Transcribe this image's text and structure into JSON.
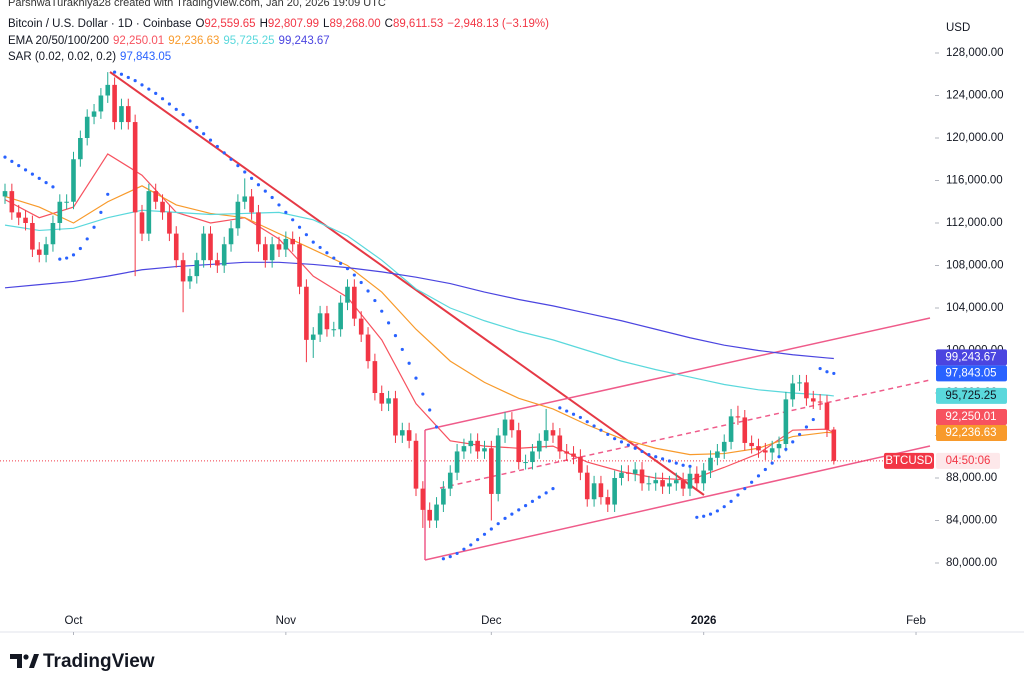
{
  "header": {
    "credit": "ParshwaTurakhiya28 created with TradingView.com, Jan 20, 2026 19:09 UTC"
  },
  "brand": "TradingView",
  "chart_data": {
    "type": "candlestick",
    "symbol": "Bitcoin / U.S. Dollar · 1D · Coinbase",
    "ohlc_legend": [
      {
        "letter": "O",
        "label": "92,559.65"
      },
      {
        "letter": "H",
        "label": "92,807.99"
      },
      {
        "letter": "L",
        "label": "89,268.00"
      },
      {
        "letter": "C",
        "label": "89,611.53"
      }
    ],
    "change": "−2,948.13 (−3.19%)",
    "currency": "USD",
    "ticker": "BTCUSD",
    "countdown": "04:50:06",
    "up_color": "#22ab94",
    "down_color": "#f23645",
    "open": [
      114500,
      115000,
      113000,
      112500,
      112000,
      109500,
      109000,
      110000,
      112000,
      114000,
      114000,
      118000,
      120000,
      122000,
      122500,
      124000,
      125000,
      121500,
      123000,
      121500,
      113000,
      111000,
      115000,
      114000,
      113000,
      111000,
      108500,
      106500,
      107000,
      108500,
      111000,
      108500,
      108000,
      110000,
      111500,
      114000,
      114500,
      113000,
      110000,
      108500,
      110000,
      109500,
      110500,
      110000,
      106000,
      101000,
      101500,
      103500,
      102000,
      102000,
      104500,
      106000,
      103000,
      101500,
      99000,
      96000,
      95000,
      95500,
      92000,
      92500,
      91500,
      87000,
      85000,
      84000,
      85500,
      87000,
      88500,
      90500,
      91000,
      91500,
      90500,
      90800,
      86500,
      92000,
      93500,
      92500,
      89500,
      89500,
      90500,
      91500,
      92500,
      92000,
      90500,
      90300,
      90000,
      88500,
      86000,
      87500,
      86200,
      85500,
      88000,
      88500,
      88400,
      88800,
      87500,
      87500,
      87800,
      87200,
      87500,
      87800,
      87000,
      88400,
      87500,
      88700,
      89900,
      90500,
      91400,
      93800,
      93700,
      91300,
      91000,
      90600,
      90400,
      90800,
      91200,
      95400,
      96900,
      97000,
      95500,
      95200,
      95100,
      92559.65
    ],
    "high": [
      115700,
      115700,
      113700,
      113200,
      112700,
      110200,
      110700,
      112700,
      114700,
      114700,
      118700,
      120700,
      122700,
      123200,
      124700,
      126200,
      125700,
      123700,
      123700,
      122200,
      113700,
      115700,
      115700,
      114700,
      113700,
      111700,
      109200,
      107700,
      109200,
      111700,
      111700,
      109200,
      110700,
      112200,
      114700,
      116200,
      115200,
      113700,
      110700,
      110700,
      110700,
      111200,
      111200,
      110700,
      106700,
      102200,
      104200,
      104200,
      102700,
      105200,
      106700,
      106700,
      103700,
      102200,
      99700,
      96700,
      96200,
      96200,
      93200,
      93200,
      92200,
      87700,
      85700,
      86200,
      87700,
      89200,
      91200,
      91700,
      92200,
      92200,
      91500,
      91500,
      92700,
      94200,
      94200,
      93200,
      90200,
      91200,
      92200,
      94500,
      93200,
      92700,
      91200,
      91000,
      90700,
      89200,
      88200,
      88200,
      86900,
      88700,
      89200,
      89200,
      89500,
      89500,
      88200,
      88500,
      88500,
      88200,
      88500,
      88500,
      89100,
      89100,
      89400,
      90600,
      91200,
      92100,
      94500,
      94800,
      94400,
      92000,
      91700,
      91300,
      91500,
      91900,
      96100,
      97700,
      97700,
      97700,
      96200,
      95900,
      95800,
      92807.99
    ],
    "low": [
      113800,
      112300,
      111800,
      111300,
      108800,
      108300,
      108300,
      109300,
      111300,
      113300,
      113300,
      117300,
      119300,
      121300,
      121800,
      123300,
      120800,
      120800,
      120800,
      107000,
      110300,
      110300,
      113300,
      112300,
      110300,
      107800,
      103600,
      105800,
      106300,
      107800,
      107800,
      107300,
      107300,
      109300,
      110800,
      113300,
      112300,
      109300,
      107800,
      107800,
      108800,
      108800,
      109300,
      105300,
      98900,
      99300,
      100800,
      101300,
      101300,
      101300,
      103800,
      102300,
      100800,
      98300,
      95300,
      94300,
      94300,
      91300,
      91300,
      90800,
      86300,
      83300,
      83300,
      83300,
      84800,
      86300,
      87800,
      89800,
      90300,
      89800,
      89800,
      84000,
      85800,
      91300,
      91800,
      88800,
      88800,
      88800,
      89800,
      90800,
      91300,
      89800,
      89600,
      89300,
      87800,
      85300,
      85300,
      85500,
      84800,
      84800,
      87300,
      87700,
      87700,
      86800,
      86800,
      86800,
      86500,
      86500,
      86800,
      86300,
      86300,
      86800,
      86800,
      88000,
      89200,
      89800,
      90700,
      93000,
      90600,
      90300,
      89900,
      89700,
      89700,
      90100,
      90500,
      94700,
      96200,
      94800,
      94500,
      94400,
      91860,
      89268
    ],
    "close": [
      115000,
      113000,
      112500,
      112000,
      109500,
      109000,
      110000,
      112000,
      114000,
      114000,
      118000,
      120000,
      122000,
      122500,
      124000,
      125000,
      121500,
      123000,
      121500,
      113000,
      111000,
      115000,
      114000,
      113000,
      111000,
      108500,
      106500,
      107000,
      108500,
      111000,
      108500,
      108000,
      110000,
      111500,
      114000,
      114500,
      113000,
      110000,
      108500,
      110000,
      109500,
      110500,
      110000,
      106000,
      101000,
      101500,
      103500,
      102000,
      102000,
      104500,
      106000,
      103000,
      101500,
      99000,
      96000,
      95000,
      95500,
      92000,
      92500,
      91500,
      87000,
      85000,
      84000,
      85500,
      87000,
      88500,
      90500,
      91000,
      91500,
      90500,
      90800,
      86500,
      92000,
      93500,
      92500,
      89500,
      89500,
      90500,
      91500,
      92500,
      92000,
      90500,
      90300,
      90000,
      88500,
      86000,
      87500,
      86200,
      85500,
      88000,
      88500,
      88400,
      88800,
      87500,
      87500,
      87800,
      87200,
      87500,
      87800,
      87000,
      88400,
      87500,
      88700,
      89900,
      90500,
      91400,
      93800,
      93700,
      91300,
      91000,
      90600,
      90400,
      90800,
      91200,
      95400,
      96900,
      97000,
      95500,
      95200,
      95100,
      92560,
      89611.53
    ],
    "xlim": [
      -0.73,
      135.77
    ],
    "xticks": [
      {
        "value": 10,
        "label": "Oct"
      },
      {
        "value": 41,
        "label": "Nov"
      },
      {
        "value": 71,
        "label": "Dec"
      },
      {
        "value": 102,
        "label": "2026"
      },
      {
        "value": 133,
        "label": "Feb"
      }
    ],
    "ylim": [
      73505,
      131859
    ],
    "yticks": [
      {
        "value": 80000,
        "label": "80,000.00"
      },
      {
        "value": 84000,
        "label": "84,000.00"
      },
      {
        "value": 88000,
        "label": "88,000.00"
      },
      {
        "value": 92000,
        "label": "92,000.00"
      },
      {
        "value": 96000,
        "label": "96,000.00"
      },
      {
        "value": 100000,
        "label": "100,000.00"
      },
      {
        "value": 104000,
        "label": "104,000.00"
      },
      {
        "value": 108000,
        "label": "108,000.00"
      },
      {
        "value": 112000,
        "label": "112,000.00"
      },
      {
        "value": 116000,
        "label": "116,000.00"
      },
      {
        "value": 120000,
        "label": "120,000.00"
      },
      {
        "value": 124000,
        "label": "124,000.00"
      },
      {
        "value": 128000,
        "label": "128,000.00"
      }
    ],
    "ema": {
      "name": "EMA 20/50/100/200",
      "x": [
        0,
        5,
        10,
        15,
        20,
        25,
        30,
        35,
        40,
        45,
        50,
        55,
        60,
        65,
        70,
        75,
        80,
        85,
        90,
        95,
        100,
        105,
        110,
        115,
        120,
        121
      ],
      "series": [
        {
          "color": "#f7525f",
          "values": [
            114200,
            112500,
            113500,
            118500,
            116500,
            113000,
            112000,
            112500,
            110500,
            107000,
            105000,
            101000,
            95000,
            91500,
            91000,
            90800,
            91000,
            89500,
            88600,
            88000,
            87800,
            89000,
            90300,
            92500,
            92600,
            92250.01
          ],
          "last_label": "92,250.01"
        },
        {
          "color": "#f89a2b",
          "values": [
            114500,
            113500,
            112000,
            114000,
            115500,
            113700,
            112900,
            112500,
            111000,
            109500,
            108000,
            105500,
            102000,
            99000,
            97000,
            95500,
            94500,
            93000,
            91700,
            90800,
            90200,
            90300,
            90800,
            91900,
            92300,
            92236.63
          ],
          "last_label": "92,236.63"
        },
        {
          "color": "#5ad8dc",
          "values": [
            111800,
            111300,
            111500,
            112500,
            113200,
            113000,
            112800,
            112900,
            113000,
            112300,
            110800,
            108500,
            105800,
            104000,
            102800,
            101800,
            101000,
            100000,
            99000,
            98200,
            97500,
            96800,
            96300,
            96000,
            95800,
            95725.25
          ],
          "last_label": "95,725.25"
        },
        {
          "color": "#4b45e0",
          "values": [
            105900,
            106200,
            106500,
            107000,
            107600,
            107900,
            108100,
            108300,
            108300,
            108100,
            107800,
            107400,
            106900,
            106300,
            105500,
            104800,
            104200,
            103500,
            102800,
            102000,
            101200,
            100500,
            100000,
            99600,
            99300,
            99243.67
          ],
          "last_label": "99,243.67"
        }
      ]
    },
    "sar": {
      "name": "SAR (0.02, 0.02, 0.2)",
      "color": "#2962ff",
      "last_label": "97,843.05",
      "values": [
        118200,
        117800,
        117400,
        117000,
        116600,
        116200,
        115800,
        115400,
        108600,
        108700,
        109000,
        109600,
        110500,
        111600,
        113000,
        114700,
        126200,
        126000,
        125700,
        125400,
        125000,
        124600,
        124200,
        123700,
        123200,
        122700,
        122200,
        121600,
        121000,
        120400,
        119800,
        119200,
        118600,
        118000,
        117400,
        116800,
        116200,
        115600,
        115000,
        114400,
        113700,
        113000,
        112300,
        111600,
        110900,
        110200,
        109700,
        109200,
        108700,
        108200,
        107700,
        107100,
        106400,
        105600,
        104700,
        103700,
        102600,
        101400,
        100100,
        98800,
        97400,
        95900,
        94400,
        92800,
        80400,
        80600,
        80900,
        81300,
        81700,
        82200,
        82700,
        83200,
        83700,
        84200,
        84600,
        85000,
        85400,
        85800,
        86200,
        86600,
        87000,
        94600,
        94300,
        94000,
        93700,
        93300,
        92900,
        92500,
        92100,
        91700,
        91400,
        91100,
        90800,
        90500,
        90200,
        90000,
        89800,
        89600,
        89400,
        89200,
        89100,
        84300,
        84400,
        84600,
        84900,
        85300,
        85800,
        86400,
        87000,
        87600,
        88200,
        88800,
        89400,
        90000,
        90700,
        91400,
        92100,
        92800,
        93500,
        98300,
        98000,
        97843.05
      ]
    }
  }
}
